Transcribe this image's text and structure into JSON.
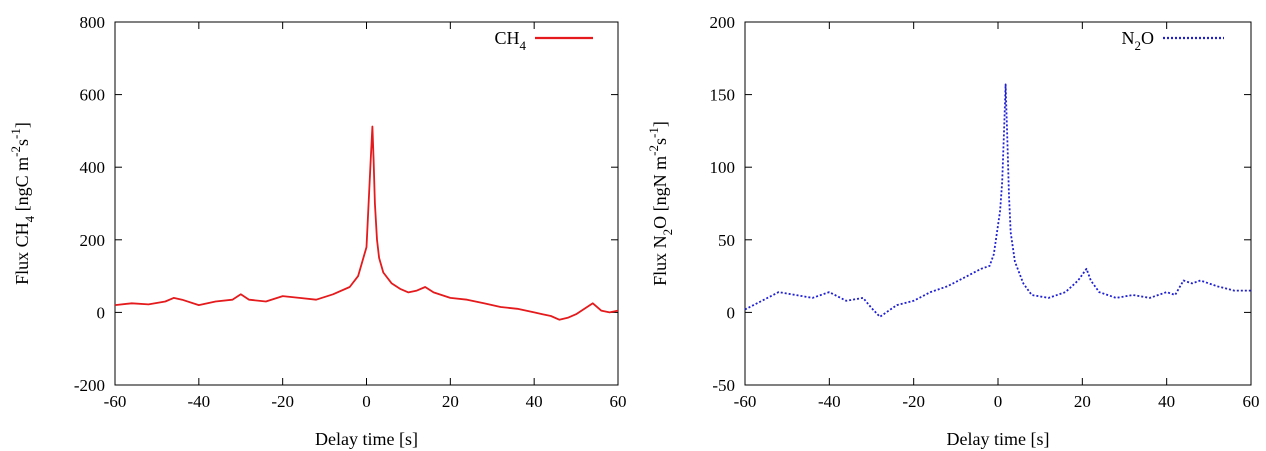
{
  "chart_data": [
    {
      "type": "line",
      "xlabel": "Delay time [s]",
      "ylabel": {
        "prefix": "Flux CH",
        "sub1": "4",
        "mid": " [ngC m",
        "sup1": "-2",
        "mid2": "s",
        "sup2": "-1",
        "suffix": "]"
      },
      "xlim": [
        -60,
        60
      ],
      "ylim": [
        -200,
        800
      ],
      "xticks": [
        "-60",
        "-40",
        "-20",
        "0",
        "20",
        "40",
        "60"
      ],
      "yticks": [
        "-200",
        "0",
        "200",
        "400",
        "600",
        "800"
      ],
      "legend_position": "top-right",
      "series": [
        {
          "name": {
            "base": "CH",
            "sub": "4"
          },
          "color": "#e41a1c",
          "line_style": "solid",
          "x": [
            -60,
            -56,
            -52,
            -48,
            -46,
            -44,
            -40,
            -36,
            -32,
            -30,
            -28,
            -24,
            -20,
            -16,
            -12,
            -8,
            -4,
            -2,
            -1,
            0,
            0.5,
            1,
            1.4,
            1.7,
            2,
            2.5,
            3,
            4,
            6,
            8,
            10,
            12,
            14,
            16,
            20,
            24,
            28,
            32,
            36,
            40,
            42,
            44,
            46,
            48,
            50,
            54,
            56,
            58,
            60
          ],
          "y": [
            20,
            25,
            22,
            30,
            40,
            35,
            20,
            30,
            35,
            50,
            35,
            30,
            45,
            40,
            35,
            50,
            70,
            100,
            140,
            180,
            300,
            420,
            512,
            420,
            300,
            200,
            150,
            110,
            80,
            65,
            55,
            60,
            70,
            55,
            40,
            35,
            25,
            15,
            10,
            0,
            -5,
            -10,
            -20,
            -15,
            -5,
            25,
            5,
            0,
            5
          ]
        }
      ]
    },
    {
      "type": "line",
      "xlabel": "Delay time [s]",
      "ylabel": {
        "prefix": "Flux N",
        "sub1": "2",
        "mid": "O [ngN m",
        "sup1": "-2",
        "mid2": "s",
        "sup2": "-1",
        "suffix": "]"
      },
      "xlim": [
        -60,
        60
      ],
      "ylim": [
        -50,
        200
      ],
      "xticks": [
        "-60",
        "-40",
        "-20",
        "0",
        "20",
        "40",
        "60"
      ],
      "yticks": [
        "-50",
        "0",
        "50",
        "100",
        "150",
        "200"
      ],
      "legend_position": "top-right",
      "series": [
        {
          "name": {
            "base": "N",
            "sub": "2",
            "tail": "O"
          },
          "color": "#1f1fd6",
          "line_style": "dotted",
          "x": [
            -60,
            -56,
            -52,
            -48,
            -44,
            -40,
            -36,
            -32,
            -30,
            -28,
            -24,
            -20,
            -16,
            -12,
            -8,
            -4,
            -2,
            -1,
            0,
            0.5,
            1,
            1.5,
            1.8,
            2.2,
            2.6,
            3,
            4,
            6,
            8,
            12,
            16,
            19,
            21,
            22,
            24,
            28,
            32,
            36,
            40,
            42,
            44,
            46,
            48,
            52,
            56,
            60
          ],
          "y": [
            2,
            8,
            14,
            12,
            10,
            14,
            8,
            10,
            3,
            -3,
            5,
            8,
            14,
            18,
            24,
            30,
            32,
            40,
            60,
            70,
            90,
            130,
            157,
            120,
            80,
            55,
            35,
            20,
            12,
            10,
            14,
            22,
            30,
            22,
            14,
            10,
            12,
            10,
            14,
            12,
            22,
            20,
            22,
            18,
            15,
            15
          ]
        }
      ]
    }
  ]
}
